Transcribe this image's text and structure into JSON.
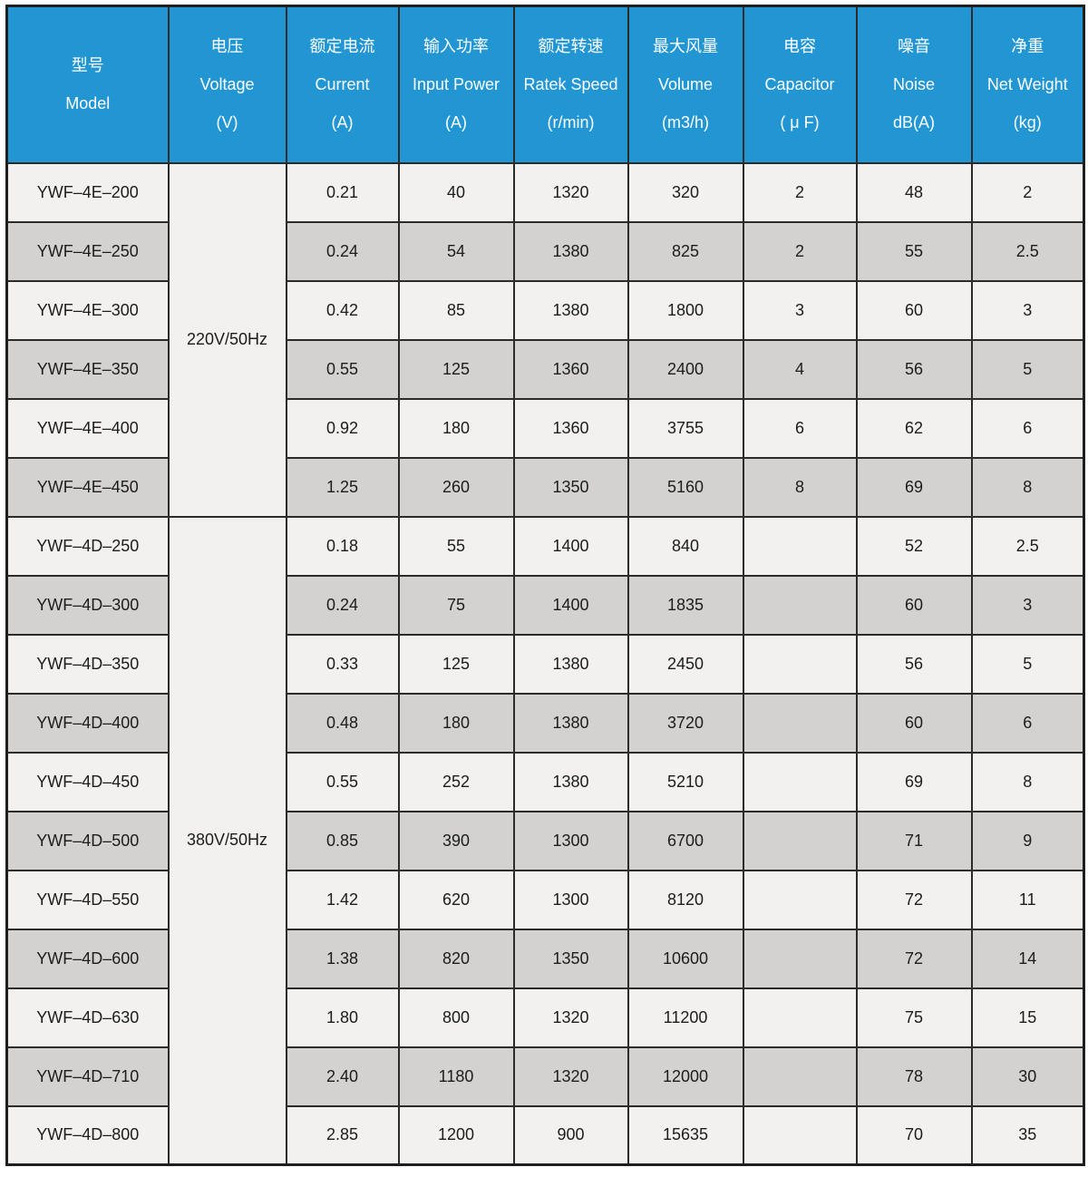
{
  "title": "Fan model specification table",
  "colors": {
    "header_bg": "#2196d3",
    "header_text": "#ffffff",
    "row_light": "#f2f1ef",
    "row_gray": "#d3d2d0",
    "border": "#2b2b2b",
    "body_text": "#1c1c1c"
  },
  "header": {
    "columns": [
      {
        "key": "model",
        "zh": "型号",
        "en": "Model",
        "unit": ""
      },
      {
        "key": "voltage",
        "zh": "电压",
        "en": "Voltage",
        "unit": "(V)"
      },
      {
        "key": "current",
        "zh": "额定电流",
        "en": "Current",
        "unit": "(A)"
      },
      {
        "key": "power",
        "zh": "输入功率",
        "en": "Input Power",
        "unit": "(A)"
      },
      {
        "key": "speed",
        "zh": "额定转速",
        "en": "Ratek Speed",
        "unit": "(r/min)"
      },
      {
        "key": "volume",
        "zh": "最大风量",
        "en": "Volume",
        "unit": "(m3/h)"
      },
      {
        "key": "capacitor",
        "zh": "电容",
        "en": "Capacitor",
        "unit": "( μ F)"
      },
      {
        "key": "noise",
        "zh": "噪音",
        "en": "Noise",
        "unit": "dB(A)"
      },
      {
        "key": "weight",
        "zh": "净重",
        "en": "Net Weight",
        "unit": "(kg)"
      }
    ]
  },
  "groups": [
    {
      "voltage": "220V/50Hz",
      "rows": [
        {
          "model": "YWF–4E–200",
          "current": "0.21",
          "power": "40",
          "speed": "1320",
          "volume": "320",
          "capacitor": "2",
          "noise": "48",
          "weight": "2"
        },
        {
          "model": "YWF–4E–250",
          "current": "0.24",
          "power": "54",
          "speed": "1380",
          "volume": "825",
          "capacitor": "2",
          "noise": "55",
          "weight": "2.5"
        },
        {
          "model": "YWF–4E–300",
          "current": "0.42",
          "power": "85",
          "speed": "1380",
          "volume": "1800",
          "capacitor": "3",
          "noise": "60",
          "weight": "3"
        },
        {
          "model": "YWF–4E–350",
          "current": "0.55",
          "power": "125",
          "speed": "1360",
          "volume": "2400",
          "capacitor": "4",
          "noise": "56",
          "weight": "5"
        },
        {
          "model": "YWF–4E–400",
          "current": "0.92",
          "power": "180",
          "speed": "1360",
          "volume": "3755",
          "capacitor": "6",
          "noise": "62",
          "weight": "6"
        },
        {
          "model": "YWF–4E–450",
          "current": "1.25",
          "power": "260",
          "speed": "1350",
          "volume": "5160",
          "capacitor": "8",
          "noise": "69",
          "weight": "8"
        }
      ]
    },
    {
      "voltage": "380V/50Hz",
      "rows": [
        {
          "model": "YWF–4D–250",
          "current": "0.18",
          "power": "55",
          "speed": "1400",
          "volume": "840",
          "capacitor": "",
          "noise": "52",
          "weight": "2.5"
        },
        {
          "model": "YWF–4D–300",
          "current": "0.24",
          "power": "75",
          "speed": "1400",
          "volume": "1835",
          "capacitor": "",
          "noise": "60",
          "weight": "3"
        },
        {
          "model": "YWF–4D–350",
          "current": "0.33",
          "power": "125",
          "speed": "1380",
          "volume": "2450",
          "capacitor": "",
          "noise": "56",
          "weight": "5"
        },
        {
          "model": "YWF–4D–400",
          "current": "0.48",
          "power": "180",
          "speed": "1380",
          "volume": "3720",
          "capacitor": "",
          "noise": "60",
          "weight": "6"
        },
        {
          "model": "YWF–4D–450",
          "current": "0.55",
          "power": "252",
          "speed": "1380",
          "volume": "5210",
          "capacitor": "",
          "noise": "69",
          "weight": "8"
        },
        {
          "model": "YWF–4D–500",
          "current": "0.85",
          "power": "390",
          "speed": "1300",
          "volume": "6700",
          "capacitor": "",
          "noise": "71",
          "weight": "9"
        },
        {
          "model": "YWF–4D–550",
          "current": "1.42",
          "power": "620",
          "speed": "1300",
          "volume": "8120",
          "capacitor": "",
          "noise": "72",
          "weight": "11"
        },
        {
          "model": "YWF–4D–600",
          "current": "1.38",
          "power": "820",
          "speed": "1350",
          "volume": "10600",
          "capacitor": "",
          "noise": "72",
          "weight": "14"
        },
        {
          "model": "YWF–4D–630",
          "current": "1.80",
          "power": "800",
          "speed": "1320",
          "volume": "11200",
          "capacitor": "",
          "noise": "75",
          "weight": "15"
        },
        {
          "model": "YWF–4D–710",
          "current": "2.40",
          "power": "1180",
          "speed": "1320",
          "volume": "12000",
          "capacitor": "",
          "noise": "78",
          "weight": "30"
        },
        {
          "model": "YWF–4D–800",
          "current": "2.85",
          "power": "1200",
          "speed": "900",
          "volume": "15635",
          "capacitor": "",
          "noise": "70",
          "weight": "35"
        }
      ]
    }
  ]
}
